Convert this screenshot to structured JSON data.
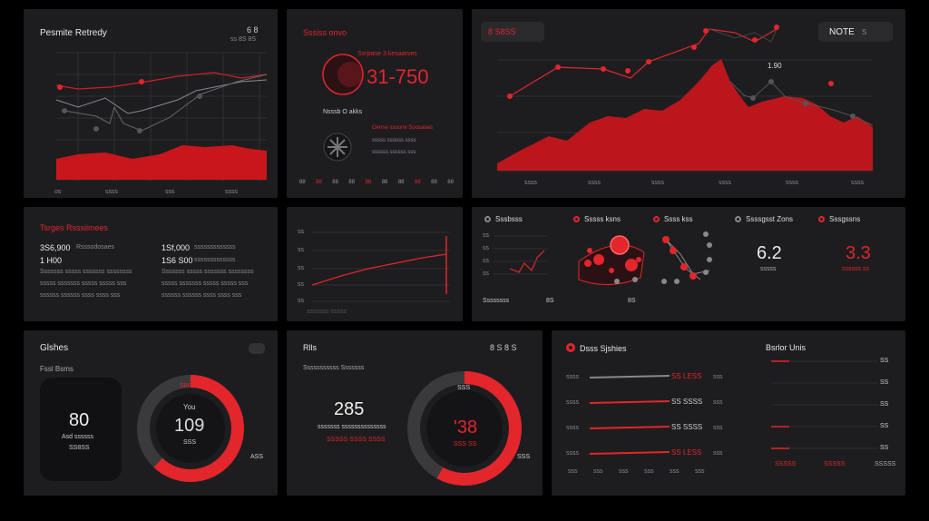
{
  "colors": {
    "accent": "#e3252c",
    "bg": "#1d1d1f",
    "grid": "#333336"
  },
  "panel_revenue": {
    "title": "Pesmite Retredy",
    "controls": "6 8",
    "sub": "ss 8S 8S",
    "x_labels": [
      "os",
      "ssss",
      "sss",
      "ssss"
    ]
  },
  "panel_metrics": {
    "title": "Sssiss onvo",
    "big_label": "Ssrpane 3 kesaarses",
    "big_value": "31-750",
    "sub_label": "Nsssb O akks",
    "sub_lines": [
      "Oense ssoone Soosaaes",
      "sssss ssosss ssss",
      "ssssss ssssss sss"
    ],
    "toolbar": [
      "88",
      "88",
      "88",
      "88",
      "88",
      "88",
      "88",
      "88",
      "88",
      "88"
    ]
  },
  "panel_main": {
    "tab": "8 S8SS",
    "notes_label": "NOTE",
    "notes_sub": "S",
    "annotation": "1.90",
    "x_labels": [
      "ssss",
      "ssss",
      "ssss",
      "ssss",
      "ssss",
      "ssss"
    ]
  },
  "panel_targets": {
    "title": "Tsrges Rsssiimees",
    "rows": [
      {
        "v1": "3S6,900",
        "l1": "Rsssodosaes",
        "v2": "1Sf,000",
        "l2": "sssssssssssss"
      },
      {
        "v1": "1 H00",
        "l1": "",
        "v2": "1S6 S00",
        "l2": "sssssssssssss"
      }
    ],
    "lines": [
      "Sssssss sssss sssssss ssssssss",
      "sssss sssssss sssss sssss sss",
      "ssssss ssssss ssss ssss sss"
    ]
  },
  "panel_trend": {
    "y_labels": [
      "ss",
      "ss",
      "ss",
      "ss",
      "ss"
    ],
    "foot": "sssssss sssss"
  },
  "panel_kpis": {
    "items": [
      {
        "label": "Sssbsss",
        "style": "grey"
      },
      {
        "label": "Sssss ksns",
        "style": "red"
      },
      {
        "label": "Ssss kss",
        "style": "red"
      },
      {
        "label": "Ssssgsst Zons",
        "style": "grey"
      },
      {
        "label": "Sssgssns",
        "style": "red"
      }
    ],
    "mini_y": [
      "ss",
      "ss",
      "ss",
      "ss"
    ],
    "foot_left": "Ssssssss",
    "foot_right": "8S",
    "foot_mid": "8S",
    "kpi1_value": "6.2",
    "kpi1_sub": "sssss",
    "kpi2_value": "3.3",
    "kpi2_sub": "ssssss ss"
  },
  "panel_gauges": {
    "title": "Glshes",
    "subtitle": "Fssl Bsms",
    "card_value": "80",
    "card_label": "Asd ssssss",
    "card_sub": "SS8SS",
    "ring_top": "You",
    "ring_value": "109",
    "ring_sub": "SSS",
    "ring_tag": "S8S SS",
    "side_label": "ASS",
    "progress": 0.62
  },
  "panel_score": {
    "title": "Rlls",
    "controls": "8 S 8 S",
    "subtitle": "Sssssssssss Sssssss",
    "value": "285",
    "value_sub": "sssssss ssssssssssssss",
    "value_tag": "SSSSS SSSS SSSS",
    "ring_top": "SSS",
    "ring_value": "'38",
    "ring_sub": "SSS SS",
    "side_label": "SSS",
    "progress": 0.58
  },
  "panel_series": {
    "title": "Dsss Sjshies",
    "rows": [
      {
        "label": "ssss",
        "value": "SS LESS",
        "right": "sss"
      },
      {
        "label": "ssss",
        "value": "SS SSSS",
        "right": "sss"
      },
      {
        "label": "ssss",
        "value": "SS SSSS",
        "right": "sss"
      },
      {
        "label": "ssss",
        "value": "SS LESS",
        "right": "sss"
      }
    ],
    "x_labels": [
      "sss",
      "sss",
      "sss",
      "sss",
      "sss",
      "sss"
    ]
  },
  "panel_units": {
    "title": "Bsrlor Unis",
    "rows": [
      "SS",
      "SS",
      "SS",
      "SS",
      "SS"
    ],
    "x_labels": [
      "SSSSS",
      "SSSSS",
      "SSSSS"
    ]
  }
}
